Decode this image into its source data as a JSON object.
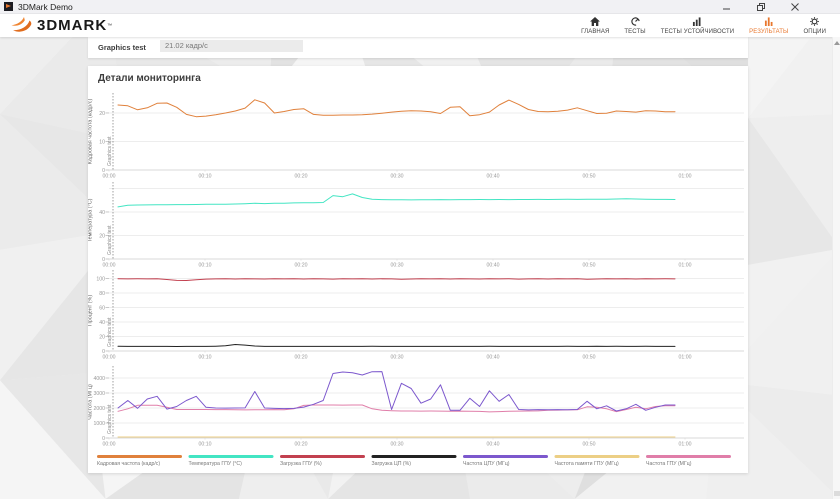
{
  "window": {
    "title": "3DMark Demo"
  },
  "header": {
    "logo_text": "3DMARK",
    "accent_color": "#e8772e",
    "nav": [
      {
        "label": "ГЛАВНАЯ",
        "icon": "home-icon",
        "active": false
      },
      {
        "label": "ТЕСТЫ",
        "icon": "gauge-icon",
        "active": false
      },
      {
        "label": "ТЕСТЫ УСТОЙЧИВОСТИ",
        "icon": "bar-chart-icon",
        "active": false
      },
      {
        "label": "РЕЗУЛЬТАТЫ",
        "icon": "results-chart-icon",
        "active": true
      },
      {
        "label": "ОПЦИИ",
        "icon": "gear-icon",
        "active": false
      }
    ]
  },
  "graphics_test": {
    "label": "Graphics test",
    "value": "21.02 кадр/с"
  },
  "monitoring": {
    "title": "Детали мониторинга"
  },
  "chart_data": [
    {
      "type": "line",
      "ylabel": "Кадровая частота (кадр/с)",
      "yticks": [
        0,
        10,
        20
      ],
      "grid": [
        10,
        20
      ],
      "ylim": [
        0,
        27
      ],
      "x_ticks": [
        "00:00",
        "00:10",
        "00:20",
        "00:30",
        "00:40",
        "00:50",
        "01:00"
      ],
      "t_start_min": 0.94,
      "t_step_min": 1.0179,
      "marker_label": "Graphics test",
      "series": [
        {
          "name": "Кадровая частота (кадр/с)",
          "color": "#e0813c",
          "values": [
            22.8,
            22.5,
            21.1,
            21.8,
            23.4,
            23.5,
            22.0,
            19.5,
            18.7,
            18.9,
            19.4,
            20.0,
            20.7,
            21.7,
            24.6,
            23.5,
            20.0,
            20.5,
            21.2,
            21.5,
            19.5,
            19.2,
            19.2,
            19.3,
            19.3,
            19.4,
            19.6,
            19.9,
            20.3,
            20.6,
            20.8,
            20.7,
            20.4,
            19.8,
            22.0,
            22.2,
            19.0,
            19.4,
            20.3,
            22.8,
            24.5,
            23.0,
            21.2,
            20.5,
            20.4,
            20.6,
            21.0,
            21.8,
            20.8,
            19.8,
            19.9,
            20.7,
            20.5,
            20.3,
            20.8,
            20.7,
            20.4,
            20.4
          ]
        }
      ]
    },
    {
      "type": "line",
      "ylabel": "Температура (°C)",
      "yticks": [
        0,
        20,
        40
      ],
      "grid": [
        20,
        40,
        60
      ],
      "ylim": [
        0,
        65.5
      ],
      "x_ticks": [
        "00:00",
        "00:10",
        "00:20",
        "00:30",
        "00:40",
        "00:50",
        "01:00"
      ],
      "t_start_min": 0.94,
      "t_step_min": 1.0179,
      "marker_label": "Graphics test",
      "series": [
        {
          "name": "Температура ГПУ (°C)",
          "color": "#43e5c3",
          "values": [
            44.3,
            45.7,
            45.9,
            46.0,
            46.1,
            46.2,
            46.3,
            46.3,
            46.4,
            46.5,
            46.6,
            46.6,
            46.8,
            47.0,
            47.4,
            47.1,
            47.4,
            47.5,
            47.7,
            47.8,
            47.9,
            48.1,
            53.9,
            53.0,
            55.4,
            52.3,
            50.8,
            50.5,
            50.4,
            50.4,
            50.3,
            50.4,
            50.4,
            50.5,
            50.4,
            50.5,
            50.5,
            50.6,
            50.5,
            50.6,
            50.5,
            50.6,
            50.6,
            50.7,
            50.6,
            50.7,
            50.8,
            50.7,
            50.8,
            50.8,
            50.9,
            51.0,
            51.3,
            51.0,
            50.8,
            50.7,
            50.7,
            50.6
          ]
        }
      ]
    },
    {
      "type": "line",
      "ylabel": "Процент (%)",
      "yticks": [
        0,
        20,
        40,
        60,
        80,
        100
      ],
      "grid": [
        20,
        40,
        60,
        80,
        100
      ],
      "ylim": [
        0,
        111.7
      ],
      "x_ticks": [
        "00:00",
        "00:10",
        "00:20",
        "00:30",
        "00:40",
        "00:50",
        "01:00"
      ],
      "t_start_min": 0.94,
      "t_step_min": 1.0179,
      "marker_label": "Graphics test",
      "series": [
        {
          "name": "Загрузка ГПУ (%)",
          "color": "#c2404f",
          "values": [
            99.6,
            99.4,
            99.5,
            99.4,
            99.5,
            98.6,
            97.4,
            97.2,
            98.3,
            99.2,
            99.4,
            99.5,
            99.3,
            99.5,
            99.4,
            99.3,
            99.5,
            99.4,
            99.5,
            99.3,
            99.5,
            99.4,
            99.2,
            99.5,
            99.4,
            99.5,
            99.3,
            99.5,
            99.4,
            98.9,
            99.3,
            99.5,
            99.4,
            99.5,
            99.3,
            99.5,
            99.4,
            99.3,
            99.5,
            99.4,
            99.5,
            99.2,
            99.4,
            99.5,
            99.3,
            99.5,
            99.4,
            99.5,
            98.9,
            99.3,
            99.5,
            99.4,
            99.5,
            99.3,
            99.5,
            99.4,
            99.5,
            99.4
          ]
        },
        {
          "name": "Загрузка ЦП (%)",
          "color": "#222222",
          "values": [
            6.5,
            6.3,
            6.4,
            6.3,
            6.4,
            6.3,
            6.2,
            6.3,
            6.4,
            6.4,
            6.6,
            7.2,
            9.0,
            8.2,
            6.9,
            6.4,
            6.3,
            6.4,
            6.3,
            6.3,
            6.4,
            6.3,
            6.4,
            6.4,
            6.3,
            6.4,
            6.5,
            6.3,
            6.4,
            6.3,
            6.3,
            6.4,
            6.3,
            6.4,
            6.3,
            6.4,
            6.4,
            6.3,
            6.5,
            6.4,
            6.3,
            6.4,
            6.3,
            6.4,
            6.4,
            6.3,
            6.5,
            6.4,
            6.4,
            6.6,
            6.4,
            6.5,
            6.4,
            6.4,
            6.5,
            6.4,
            6.4,
            6.4
          ]
        }
      ]
    },
    {
      "type": "line",
      "ylabel": "Частота (МГц)",
      "yticks": [
        0,
        1000,
        2000,
        3000,
        4000
      ],
      "grid": [
        1000,
        2000,
        3000,
        4000
      ],
      "ylim": [
        0,
        4800
      ],
      "x_ticks": [
        "00:00",
        "00:10",
        "00:20",
        "00:30",
        "00:40",
        "00:50",
        "01:00"
      ],
      "t_start_min": 0.94,
      "t_step_min": 1.0179,
      "marker_label": "Graphics test",
      "series": [
        {
          "name": "Частота памяти ГПУ (МГц)",
          "color": "#eccf85",
          "values": [
            65,
            65,
            65,
            65,
            65,
            65,
            65,
            65,
            65,
            65,
            65,
            65,
            65,
            65,
            65,
            65,
            65,
            65,
            65,
            65,
            65,
            65,
            65,
            65,
            65,
            65,
            65,
            65,
            65,
            65,
            65,
            65,
            65,
            65,
            65,
            65,
            65,
            65,
            65,
            65,
            65,
            65,
            65,
            65,
            65,
            65,
            65,
            65,
            65,
            65,
            65,
            65,
            65,
            65,
            65,
            65,
            65,
            65
          ]
        },
        {
          "name": "Частота ГПУ (МГц)",
          "color": "#e07ea9",
          "values": [
            1780,
            1950,
            2180,
            2180,
            2180,
            2050,
            1900,
            1900,
            1900,
            1900,
            1890,
            1890,
            1880,
            1870,
            1880,
            1880,
            1890,
            1880,
            1950,
            2170,
            2200,
            2200,
            2200,
            2190,
            2200,
            2200,
            1950,
            1850,
            1820,
            1800,
            1800,
            1790,
            1800,
            1790,
            1780,
            1790,
            1780,
            1770,
            1740,
            1760,
            1780,
            1790,
            1800,
            1810,
            1850,
            1860,
            1870,
            1880,
            2080,
            2050,
            1950,
            1760,
            1900,
            2050,
            1950,
            2100,
            2150,
            2150
          ]
        },
        {
          "name": "Частота ЦПУ (МГц)",
          "color": "#7c58cd",
          "values": [
            2000,
            2500,
            1980,
            2600,
            2780,
            1930,
            2100,
            2500,
            2780,
            2050,
            2000,
            1990,
            2000,
            2010,
            3100,
            2000,
            1970,
            1960,
            1970,
            2060,
            2250,
            2500,
            4300,
            4400,
            4350,
            4200,
            4420,
            4430,
            1900,
            3650,
            3300,
            2320,
            2600,
            3550,
            1850,
            1850,
            2650,
            2100,
            3150,
            2450,
            2900,
            1900,
            1870,
            1890,
            1880,
            1890,
            1880,
            1900,
            2450,
            1950,
            2150,
            1800,
            1950,
            2250,
            1850,
            2050,
            2200,
            2200
          ]
        }
      ]
    }
  ],
  "legend": [
    {
      "label": "Кадровая частота (кадр/с)",
      "color": "#e0813c"
    },
    {
      "label": "Температура ГПУ (°C)",
      "color": "#43e5c3"
    },
    {
      "label": "Загрузка ГПУ (%)",
      "color": "#c2404f"
    },
    {
      "label": "Загрузка ЦП (%)",
      "color": "#222222"
    },
    {
      "label": "Частота ЦПУ (МГц)",
      "color": "#7c58cd"
    },
    {
      "label": "Частота памяти ГПУ (МГц)",
      "color": "#eccf85"
    },
    {
      "label": "Частота ГПУ (МГц)",
      "color": "#e07ea9"
    }
  ]
}
